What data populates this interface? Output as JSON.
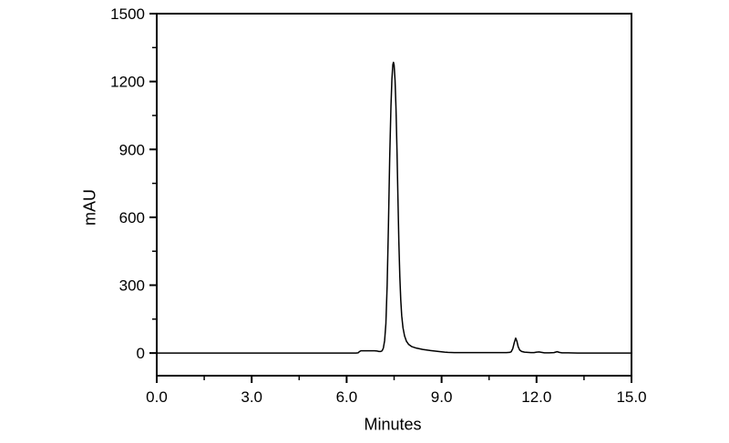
{
  "figure": {
    "background": "#ffffff",
    "axis_color": "#000000",
    "trace_color": "#000000"
  },
  "chart_data": {
    "type": "line",
    "title": "",
    "xlabel": "Minutes",
    "ylabel": "mAU",
    "xlim": [
      0,
      15
    ],
    "ylim": [
      -100,
      1500
    ],
    "grid": false,
    "legend": null,
    "frame": true,
    "x_major_ticks": [
      0,
      3,
      6,
      9,
      12,
      15
    ],
    "x_tick_labels": [
      "0.0",
      "3.0",
      "6.0",
      "9.0",
      "12.0",
      "15.0"
    ],
    "x_minor_ticks": [
      1.5,
      4.5,
      7.5,
      10.5,
      13.5
    ],
    "y_major_ticks": [
      0,
      300,
      600,
      900,
      1200,
      1500
    ],
    "y_tick_labels": [
      "0",
      "300",
      "600",
      "900",
      "1200",
      "1500"
    ],
    "y_minor_ticks": [
      150,
      450,
      750,
      1050,
      1350
    ],
    "peaks": [
      {
        "time_min": 7.48,
        "height_mAU": 1285
      },
      {
        "time_min": 11.34,
        "height_mAU": 66
      }
    ],
    "series": [
      {
        "name": "chromatogram-trace",
        "color": "#000000",
        "points": [
          [
            0.0,
            0
          ],
          [
            0.5,
            0
          ],
          [
            1.0,
            0
          ],
          [
            1.5,
            0
          ],
          [
            2.0,
            0
          ],
          [
            2.5,
            0
          ],
          [
            3.0,
            0
          ],
          [
            3.5,
            0
          ],
          [
            4.0,
            0
          ],
          [
            4.5,
            0
          ],
          [
            5.0,
            0
          ],
          [
            5.5,
            0
          ],
          [
            6.0,
            0
          ],
          [
            6.3,
            0
          ],
          [
            6.36,
            1
          ],
          [
            6.4,
            6
          ],
          [
            6.45,
            10
          ],
          [
            6.6,
            10
          ],
          [
            6.75,
            10
          ],
          [
            6.88,
            10
          ],
          [
            6.96,
            9
          ],
          [
            7.02,
            7
          ],
          [
            7.08,
            7
          ],
          [
            7.12,
            10
          ],
          [
            7.16,
            22
          ],
          [
            7.2,
            55
          ],
          [
            7.24,
            130
          ],
          [
            7.28,
            300
          ],
          [
            7.32,
            560
          ],
          [
            7.36,
            860
          ],
          [
            7.4,
            1090
          ],
          [
            7.43,
            1210
          ],
          [
            7.46,
            1275
          ],
          [
            7.48,
            1285
          ],
          [
            7.5,
            1272
          ],
          [
            7.53,
            1205
          ],
          [
            7.56,
            1080
          ],
          [
            7.59,
            900
          ],
          [
            7.62,
            690
          ],
          [
            7.65,
            490
          ],
          [
            7.68,
            340
          ],
          [
            7.71,
            235
          ],
          [
            7.74,
            165
          ],
          [
            7.78,
            112
          ],
          [
            7.83,
            76
          ],
          [
            7.89,
            52
          ],
          [
            7.96,
            38
          ],
          [
            8.05,
            29
          ],
          [
            8.2,
            22
          ],
          [
            8.4,
            16
          ],
          [
            8.65,
            11
          ],
          [
            8.9,
            7
          ],
          [
            9.1,
            4
          ],
          [
            9.2,
            3
          ],
          [
            9.4,
            2
          ],
          [
            9.7,
            2
          ],
          [
            10.0,
            2
          ],
          [
            10.4,
            2
          ],
          [
            10.8,
            2
          ],
          [
            11.05,
            2
          ],
          [
            11.15,
            3
          ],
          [
            11.2,
            6
          ],
          [
            11.25,
            20
          ],
          [
            11.3,
            48
          ],
          [
            11.34,
            66
          ],
          [
            11.38,
            52
          ],
          [
            11.42,
            28
          ],
          [
            11.47,
            13
          ],
          [
            11.53,
            7
          ],
          [
            11.62,
            4
          ],
          [
            11.72,
            3
          ],
          [
            11.82,
            2
          ],
          [
            11.92,
            2
          ],
          [
            12.0,
            4
          ],
          [
            12.08,
            5
          ],
          [
            12.16,
            3
          ],
          [
            12.25,
            1
          ],
          [
            12.4,
            1
          ],
          [
            12.55,
            2
          ],
          [
            12.65,
            6
          ],
          [
            12.72,
            3
          ],
          [
            12.8,
            1
          ],
          [
            13.0,
            1
          ],
          [
            13.3,
            0
          ],
          [
            13.7,
            0
          ],
          [
            14.2,
            0
          ],
          [
            14.6,
            0
          ],
          [
            15.0,
            0
          ]
        ]
      }
    ]
  }
}
